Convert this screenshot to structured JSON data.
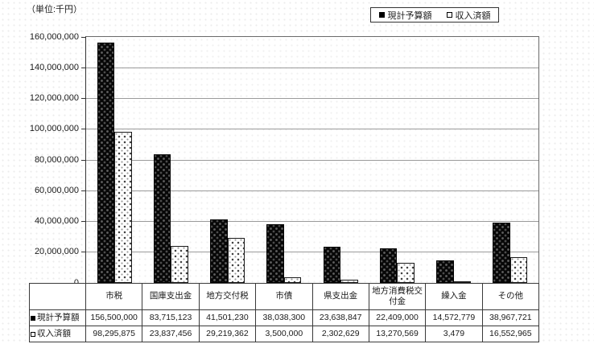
{
  "unit_label": "（単位:千円）",
  "legend": {
    "items": [
      {
        "label": "現計予算額",
        "marker": "filled-square"
      },
      {
        "label": "収入済額",
        "marker": "open-square"
      }
    ]
  },
  "chart_data": {
    "type": "bar",
    "title": "",
    "unit_note": "（単位:千円）",
    "categories": [
      "市税",
      "国庫支出金",
      "地方交付税",
      "市債",
      "県支出金",
      "地方消費税交付金",
      "繰入金",
      "その他"
    ],
    "series": [
      {
        "name": "現計予算額",
        "style": "black-dotted",
        "values": [
          156500000,
          83715123,
          41501230,
          38038300,
          23638847,
          22409000,
          14572779,
          38967721
        ]
      },
      {
        "name": "収入済額",
        "style": "white-dotted",
        "values": [
          98295875,
          23837456,
          29219362,
          3500000,
          2302629,
          13270569,
          3479,
          16552965
        ]
      }
    ],
    "ylim": [
      0,
      160000000
    ],
    "ytick_interval": 20000000,
    "grid": true,
    "legend_position": "top-right"
  },
  "table": {
    "column_headers": [
      "市税",
      "国庫支出金",
      "地方交付税",
      "市債",
      "県支出金",
      "地方消費税交付金",
      "繰入金",
      "その他"
    ],
    "rows": [
      {
        "marker": "filled-square",
        "label": "現計予算額",
        "values": [
          "156,500,000",
          "83,715,123",
          "41,501,230",
          "38,038,300",
          "23,638,847",
          "22,409,000",
          "14,572,779",
          "38,967,721"
        ]
      },
      {
        "marker": "open-square",
        "label": "収入済額",
        "values": [
          "98,295,875",
          "23,837,456",
          "29,219,362",
          "3,500,000",
          "2,302,629",
          "13,270,569",
          "3,479",
          "16,552,965"
        ]
      }
    ]
  },
  "colors": {
    "series1_fill": "#070707",
    "series2_fill": "#ffffff",
    "gridline": "#9a9a9a",
    "plot_border": "#6a6a6a",
    "axis_line": "#333333",
    "table_border": "#3a3a3a",
    "text": "#1a1a1a",
    "background": "#ffffff"
  }
}
